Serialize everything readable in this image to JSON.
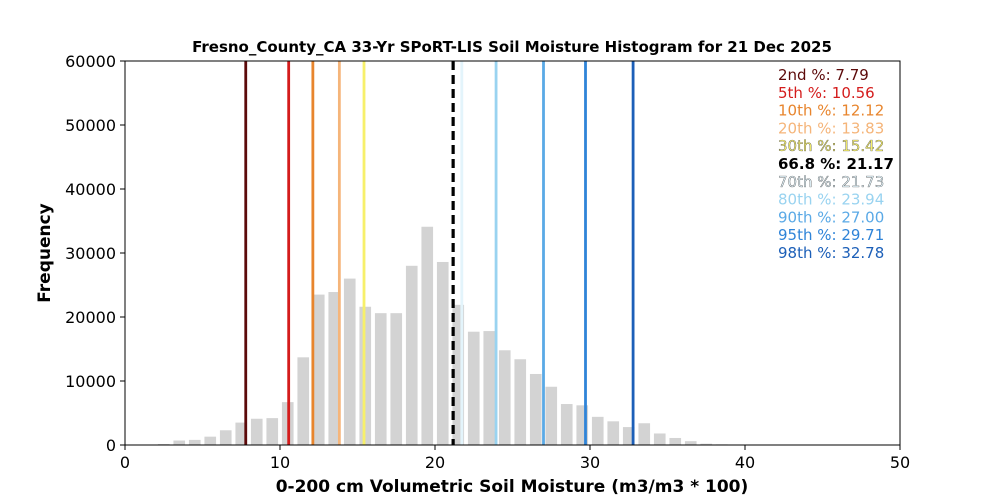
{
  "chart_data": {
    "type": "bar",
    "title": "Fresno_County_CA 33-Yr SPoRT-LIS Soil Moisture Histogram for 21 Dec 2025",
    "xlabel": "0-200 cm Volumetric Soil Moisture (m3/m3 * 100)",
    "ylabel": "Frequency",
    "xlim": [
      0,
      50
    ],
    "ylim": [
      0,
      60000
    ],
    "xticks": [
      "0",
      "10",
      "20",
      "30",
      "40",
      "50"
    ],
    "yticks": [
      "0",
      "10000",
      "20000",
      "30000",
      "40000",
      "50000",
      "60000"
    ],
    "bar_color": "#d3d3d3",
    "bar_width": 0.75,
    "bars": [
      {
        "x": 2.5,
        "y": 150
      },
      {
        "x": 3.5,
        "y": 700
      },
      {
        "x": 4.5,
        "y": 800
      },
      {
        "x": 5.5,
        "y": 1300
      },
      {
        "x": 6.5,
        "y": 2300
      },
      {
        "x": 7.5,
        "y": 3500
      },
      {
        "x": 8.5,
        "y": 4100
      },
      {
        "x": 9.5,
        "y": 4200
      },
      {
        "x": 10.5,
        "y": 6700
      },
      {
        "x": 11.5,
        "y": 13700
      },
      {
        "x": 12.5,
        "y": 23500
      },
      {
        "x": 13.5,
        "y": 23900
      },
      {
        "x": 14.5,
        "y": 26000
      },
      {
        "x": 15.5,
        "y": 21600
      },
      {
        "x": 16.5,
        "y": 20600
      },
      {
        "x": 17.5,
        "y": 20600
      },
      {
        "x": 18.5,
        "y": 28000
      },
      {
        "x": 19.5,
        "y": 34100
      },
      {
        "x": 20.5,
        "y": 28600
      },
      {
        "x": 21.5,
        "y": 21900
      },
      {
        "x": 22.5,
        "y": 17700
      },
      {
        "x": 23.5,
        "y": 17800
      },
      {
        "x": 24.5,
        "y": 14800
      },
      {
        "x": 25.5,
        "y": 13400
      },
      {
        "x": 26.5,
        "y": 11100
      },
      {
        "x": 27.5,
        "y": 9100
      },
      {
        "x": 28.5,
        "y": 6400
      },
      {
        "x": 29.5,
        "y": 6200
      },
      {
        "x": 30.5,
        "y": 4400
      },
      {
        "x": 31.5,
        "y": 3700
      },
      {
        "x": 32.5,
        "y": 2800
      },
      {
        "x": 33.5,
        "y": 3400
      },
      {
        "x": 34.5,
        "y": 1800
      },
      {
        "x": 35.5,
        "y": 1100
      },
      {
        "x": 36.5,
        "y": 600
      },
      {
        "x": 37.5,
        "y": 200
      },
      {
        "x": 38.5,
        "y": 100
      },
      {
        "x": 39.5,
        "y": 50
      }
    ],
    "percentile_lines": [
      {
        "label": "2nd %: 7.79",
        "value": 7.79,
        "color": "#5c0a0a",
        "dashed": false
      },
      {
        "label": "5th %: 10.56",
        "value": 10.56,
        "color": "#d41c1c",
        "dashed": false
      },
      {
        "label": "10th %: 12.12",
        "value": 12.12,
        "color": "#e8852d",
        "dashed": false
      },
      {
        "label": "20th %: 13.83",
        "value": 13.83,
        "color": "#f5b57a",
        "dashed": false
      },
      {
        "label": "30th %: 15.42",
        "value": 15.42,
        "color": "#f7f06a",
        "dashed": false
      },
      {
        "label": "66.8 %: 21.17",
        "value": 21.17,
        "color": "#000000",
        "dashed": true
      },
      {
        "label": "70th %: 21.73",
        "value": 21.73,
        "color": "#e3f4fb",
        "dashed": false
      },
      {
        "label": "80th %: 23.94",
        "value": 23.94,
        "color": "#99d3f0",
        "dashed": false
      },
      {
        "label": "90th %: 27.00",
        "value": 27.0,
        "color": "#5aa9e6",
        "dashed": false
      },
      {
        "label": "95th %: 29.71",
        "value": 29.71,
        "color": "#2f84d8",
        "dashed": false
      },
      {
        "label": "98th %: 32.78",
        "value": 32.78,
        "color": "#1c5fb8",
        "dashed": false
      }
    ],
    "legend_placement": "top-right",
    "grid": false
  }
}
